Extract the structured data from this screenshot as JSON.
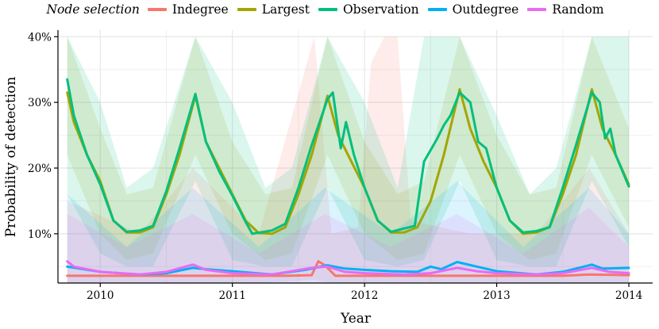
{
  "chart_data": {
    "type": "line",
    "title": "",
    "xlabel": "Year",
    "ylabel": "Probability of detection",
    "legend_title": "Node selection",
    "legend_position": "top",
    "xlim": [
      2009.68,
      2014.18
    ],
    "ylim": [
      0.025,
      0.41
    ],
    "x_ticks": [
      {
        "value": 2010,
        "label": "2010"
      },
      {
        "value": 2011,
        "label": "2011"
      },
      {
        "value": 2012,
        "label": "2012"
      },
      {
        "value": 2013,
        "label": "2013"
      },
      {
        "value": 2014,
        "label": "2014"
      }
    ],
    "y_ticks": [
      {
        "value": 0.1,
        "label": "10%"
      },
      {
        "value": 0.2,
        "label": "20%"
      },
      {
        "value": 0.3,
        "label": "30%"
      },
      {
        "value": 0.4,
        "label": "40%"
      }
    ],
    "grid": true,
    "series": [
      {
        "name": "Indegree",
        "color": "#F8766D",
        "points": [
          [
            2009.75,
            0.036
          ],
          [
            2010.0,
            0.036
          ],
          [
            2010.5,
            0.036
          ],
          [
            2011.0,
            0.036
          ],
          [
            2011.4,
            0.036
          ],
          [
            2011.6,
            0.037
          ],
          [
            2011.65,
            0.058
          ],
          [
            2011.7,
            0.052
          ],
          [
            2011.78,
            0.036
          ],
          [
            2012.0,
            0.036
          ],
          [
            2012.5,
            0.036
          ],
          [
            2013.0,
            0.036
          ],
          [
            2013.5,
            0.036
          ],
          [
            2013.7,
            0.038
          ],
          [
            2014.0,
            0.037
          ]
        ],
        "band": [
          [
            2009.75,
            0.02,
            0.15
          ],
          [
            2010.3,
            0.025,
            0.1
          ],
          [
            2010.7,
            0.025,
            0.2
          ],
          [
            2011.2,
            0.025,
            0.1
          ],
          [
            2011.62,
            0.03,
            0.4
          ],
          [
            2011.75,
            0.025,
            0.1
          ],
          [
            2011.95,
            0.025,
            0.11
          ],
          [
            2012.05,
            0.025,
            0.36
          ],
          [
            2012.15,
            0.025,
            0.4
          ],
          [
            2012.25,
            0.025,
            0.4
          ],
          [
            2012.35,
            0.025,
            0.12
          ],
          [
            2012.8,
            0.025,
            0.1
          ],
          [
            2013.3,
            0.025,
            0.1
          ],
          [
            2013.7,
            0.025,
            0.2
          ],
          [
            2014.0,
            0.025,
            0.1
          ]
        ]
      },
      {
        "name": "Largest",
        "color": "#A3A500",
        "points": [
          [
            2009.75,
            0.315
          ],
          [
            2009.8,
            0.27
          ],
          [
            2009.9,
            0.22
          ],
          [
            2010.0,
            0.18
          ],
          [
            2010.1,
            0.12
          ],
          [
            2010.2,
            0.102
          ],
          [
            2010.3,
            0.102
          ],
          [
            2010.4,
            0.11
          ],
          [
            2010.5,
            0.16
          ],
          [
            2010.6,
            0.22
          ],
          [
            2010.72,
            0.31
          ],
          [
            2010.8,
            0.24
          ],
          [
            2010.9,
            0.2
          ],
          [
            2011.0,
            0.16
          ],
          [
            2011.1,
            0.12
          ],
          [
            2011.2,
            0.101
          ],
          [
            2011.3,
            0.1
          ],
          [
            2011.4,
            0.11
          ],
          [
            2011.5,
            0.16
          ],
          [
            2011.6,
            0.22
          ],
          [
            2011.72,
            0.31
          ],
          [
            2011.8,
            0.25
          ],
          [
            2011.9,
            0.21
          ],
          [
            2012.0,
            0.17
          ],
          [
            2012.1,
            0.12
          ],
          [
            2012.2,
            0.102
          ],
          [
            2012.3,
            0.102
          ],
          [
            2012.4,
            0.11
          ],
          [
            2012.5,
            0.15
          ],
          [
            2012.6,
            0.22
          ],
          [
            2012.72,
            0.32
          ],
          [
            2012.8,
            0.26
          ],
          [
            2012.9,
            0.21
          ],
          [
            2013.0,
            0.17
          ],
          [
            2013.1,
            0.12
          ],
          [
            2013.2,
            0.1
          ],
          [
            2013.3,
            0.102
          ],
          [
            2013.4,
            0.11
          ],
          [
            2013.5,
            0.16
          ],
          [
            2013.6,
            0.22
          ],
          [
            2013.72,
            0.32
          ],
          [
            2013.8,
            0.26
          ],
          [
            2013.9,
            0.22
          ],
          [
            2014.0,
            0.175
          ]
        ],
        "band": [
          [
            2009.75,
            0.22,
            0.4
          ],
          [
            2010.0,
            0.1,
            0.26
          ],
          [
            2010.2,
            0.06,
            0.16
          ],
          [
            2010.4,
            0.07,
            0.17
          ],
          [
            2010.72,
            0.22,
            0.4
          ],
          [
            2011.0,
            0.1,
            0.24
          ],
          [
            2011.25,
            0.06,
            0.16
          ],
          [
            2011.45,
            0.07,
            0.17
          ],
          [
            2011.72,
            0.22,
            0.4
          ],
          [
            2012.0,
            0.1,
            0.24
          ],
          [
            2012.25,
            0.06,
            0.16
          ],
          [
            2012.45,
            0.07,
            0.18
          ],
          [
            2012.72,
            0.22,
            0.4
          ],
          [
            2013.0,
            0.1,
            0.25
          ],
          [
            2013.25,
            0.06,
            0.16
          ],
          [
            2013.45,
            0.07,
            0.17
          ],
          [
            2013.72,
            0.22,
            0.4
          ],
          [
            2014.0,
            0.11,
            0.26
          ]
        ]
      },
      {
        "name": "Observation",
        "color": "#00BF7D",
        "points": [
          [
            2009.75,
            0.335
          ],
          [
            2009.8,
            0.28
          ],
          [
            2009.9,
            0.22
          ],
          [
            2010.0,
            0.175
          ],
          [
            2010.1,
            0.12
          ],
          [
            2010.2,
            0.103
          ],
          [
            2010.3,
            0.105
          ],
          [
            2010.4,
            0.112
          ],
          [
            2010.5,
            0.165
          ],
          [
            2010.6,
            0.23
          ],
          [
            2010.72,
            0.313
          ],
          [
            2010.8,
            0.24
          ],
          [
            2010.9,
            0.195
          ],
          [
            2011.0,
            0.158
          ],
          [
            2011.1,
            0.118
          ],
          [
            2011.15,
            0.1
          ],
          [
            2011.3,
            0.105
          ],
          [
            2011.4,
            0.115
          ],
          [
            2011.5,
            0.17
          ],
          [
            2011.6,
            0.235
          ],
          [
            2011.72,
            0.305
          ],
          [
            2011.76,
            0.315
          ],
          [
            2011.82,
            0.23
          ],
          [
            2011.86,
            0.27
          ],
          [
            2011.92,
            0.22
          ],
          [
            2012.0,
            0.17
          ],
          [
            2012.1,
            0.12
          ],
          [
            2012.2,
            0.103
          ],
          [
            2012.3,
            0.108
          ],
          [
            2012.38,
            0.112
          ],
          [
            2012.45,
            0.21
          ],
          [
            2012.55,
            0.245
          ],
          [
            2012.6,
            0.265
          ],
          [
            2012.65,
            0.28
          ],
          [
            2012.72,
            0.315
          ],
          [
            2012.8,
            0.3
          ],
          [
            2012.86,
            0.24
          ],
          [
            2012.92,
            0.23
          ],
          [
            2013.0,
            0.17
          ],
          [
            2013.1,
            0.12
          ],
          [
            2013.2,
            0.102
          ],
          [
            2013.3,
            0.104
          ],
          [
            2013.4,
            0.11
          ],
          [
            2013.5,
            0.17
          ],
          [
            2013.6,
            0.235
          ],
          [
            2013.72,
            0.315
          ],
          [
            2013.78,
            0.3
          ],
          [
            2013.82,
            0.245
          ],
          [
            2013.86,
            0.26
          ],
          [
            2013.9,
            0.22
          ],
          [
            2014.0,
            0.172
          ]
        ],
        "band": [
          [
            2009.75,
            0.16,
            0.4
          ],
          [
            2010.0,
            0.07,
            0.3
          ],
          [
            2010.2,
            0.05,
            0.17
          ],
          [
            2010.4,
            0.05,
            0.2
          ],
          [
            2010.72,
            0.18,
            0.4
          ],
          [
            2011.0,
            0.06,
            0.3
          ],
          [
            2011.25,
            0.05,
            0.17
          ],
          [
            2011.45,
            0.05,
            0.2
          ],
          [
            2011.72,
            0.17,
            0.4
          ],
          [
            2012.0,
            0.06,
            0.3
          ],
          [
            2012.25,
            0.05,
            0.17
          ],
          [
            2012.45,
            0.06,
            0.4
          ],
          [
            2012.72,
            0.18,
            0.4
          ],
          [
            2013.0,
            0.06,
            0.28
          ],
          [
            2013.25,
            0.05,
            0.16
          ],
          [
            2013.45,
            0.05,
            0.2
          ],
          [
            2013.72,
            0.18,
            0.4
          ],
          [
            2014.0,
            0.08,
            0.4
          ]
        ]
      },
      {
        "name": "Outdegree",
        "color": "#00B0F6",
        "points": [
          [
            2009.75,
            0.05
          ],
          [
            2010.0,
            0.042
          ],
          [
            2010.3,
            0.038
          ],
          [
            2010.5,
            0.04
          ],
          [
            2010.7,
            0.048
          ],
          [
            2010.8,
            0.046
          ],
          [
            2011.0,
            0.043
          ],
          [
            2011.3,
            0.038
          ],
          [
            2011.55,
            0.045
          ],
          [
            2011.72,
            0.052
          ],
          [
            2011.85,
            0.047
          ],
          [
            2012.0,
            0.045
          ],
          [
            2012.2,
            0.043
          ],
          [
            2012.4,
            0.042
          ],
          [
            2012.5,
            0.05
          ],
          [
            2012.58,
            0.046
          ],
          [
            2012.7,
            0.057
          ],
          [
            2012.85,
            0.05
          ],
          [
            2013.0,
            0.043
          ],
          [
            2013.3,
            0.038
          ],
          [
            2013.5,
            0.042
          ],
          [
            2013.72,
            0.053
          ],
          [
            2013.8,
            0.047
          ],
          [
            2014.0,
            0.048
          ]
        ],
        "band": [
          [
            2009.75,
            0.02,
            0.16
          ],
          [
            2010.2,
            0.02,
            0.08
          ],
          [
            2010.7,
            0.02,
            0.17
          ],
          [
            2011.2,
            0.02,
            0.08
          ],
          [
            2011.7,
            0.02,
            0.17
          ],
          [
            2012.2,
            0.02,
            0.1
          ],
          [
            2012.7,
            0.02,
            0.18
          ],
          [
            2013.2,
            0.02,
            0.08
          ],
          [
            2013.7,
            0.02,
            0.17
          ],
          [
            2014.0,
            0.02,
            0.1
          ]
        ]
      },
      {
        "name": "Random",
        "color": "#E76BF3",
        "points": [
          [
            2009.75,
            0.058
          ],
          [
            2009.8,
            0.05
          ],
          [
            2010.0,
            0.042
          ],
          [
            2010.3,
            0.038
          ],
          [
            2010.5,
            0.042
          ],
          [
            2010.7,
            0.053
          ],
          [
            2010.8,
            0.045
          ],
          [
            2011.0,
            0.04
          ],
          [
            2011.3,
            0.038
          ],
          [
            2011.6,
            0.048
          ],
          [
            2011.72,
            0.05
          ],
          [
            2011.85,
            0.042
          ],
          [
            2012.0,
            0.04
          ],
          [
            2012.3,
            0.038
          ],
          [
            2012.5,
            0.04
          ],
          [
            2012.7,
            0.048
          ],
          [
            2012.85,
            0.043
          ],
          [
            2013.0,
            0.04
          ],
          [
            2013.3,
            0.038
          ],
          [
            2013.5,
            0.04
          ],
          [
            2013.72,
            0.048
          ],
          [
            2013.85,
            0.042
          ],
          [
            2014.0,
            0.04
          ]
        ],
        "band": [
          [
            2009.75,
            0.02,
            0.13
          ],
          [
            2010.2,
            0.02,
            0.08
          ],
          [
            2010.7,
            0.02,
            0.13
          ],
          [
            2011.2,
            0.02,
            0.07
          ],
          [
            2011.7,
            0.02,
            0.13
          ],
          [
            2012.2,
            0.02,
            0.08
          ],
          [
            2012.7,
            0.02,
            0.13
          ],
          [
            2013.2,
            0.02,
            0.07
          ],
          [
            2013.7,
            0.02,
            0.14
          ],
          [
            2014.0,
            0.02,
            0.08
          ]
        ]
      }
    ]
  }
}
